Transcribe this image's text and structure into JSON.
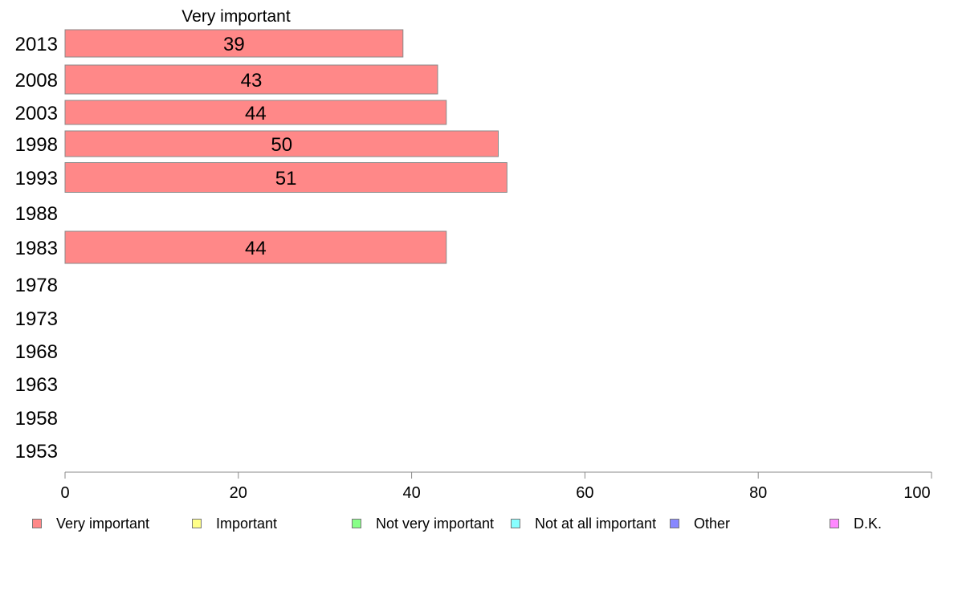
{
  "chart_data": {
    "type": "bar",
    "orientation": "horizontal",
    "title": "Very important",
    "categories": [
      "2013",
      "2008",
      "2003",
      "1998",
      "1993",
      "1988",
      "1983",
      "1978",
      "1973",
      "1968",
      "1963",
      "1958",
      "1953"
    ],
    "series": [
      {
        "name": "Very important",
        "color": "#ff8888",
        "values": [
          39,
          43,
          44,
          50,
          51,
          null,
          44,
          null,
          null,
          null,
          null,
          null,
          null
        ]
      }
    ],
    "xlim": [
      0,
      100
    ],
    "xticks": [
      0,
      20,
      40,
      60,
      80,
      100
    ],
    "grid": false,
    "legend": {
      "placement": "bottom",
      "items": [
        {
          "label": "Very important",
          "color": "#ff8888"
        },
        {
          "label": "Important",
          "color": "#ffff88"
        },
        {
          "label": "Not very important",
          "color": "#88ff88"
        },
        {
          "label": "Not at all important",
          "color": "#88ffff"
        },
        {
          "label": "Other",
          "color": "#8888ff"
        },
        {
          "label": "D.K.",
          "color": "#ff88ff"
        }
      ]
    }
  }
}
